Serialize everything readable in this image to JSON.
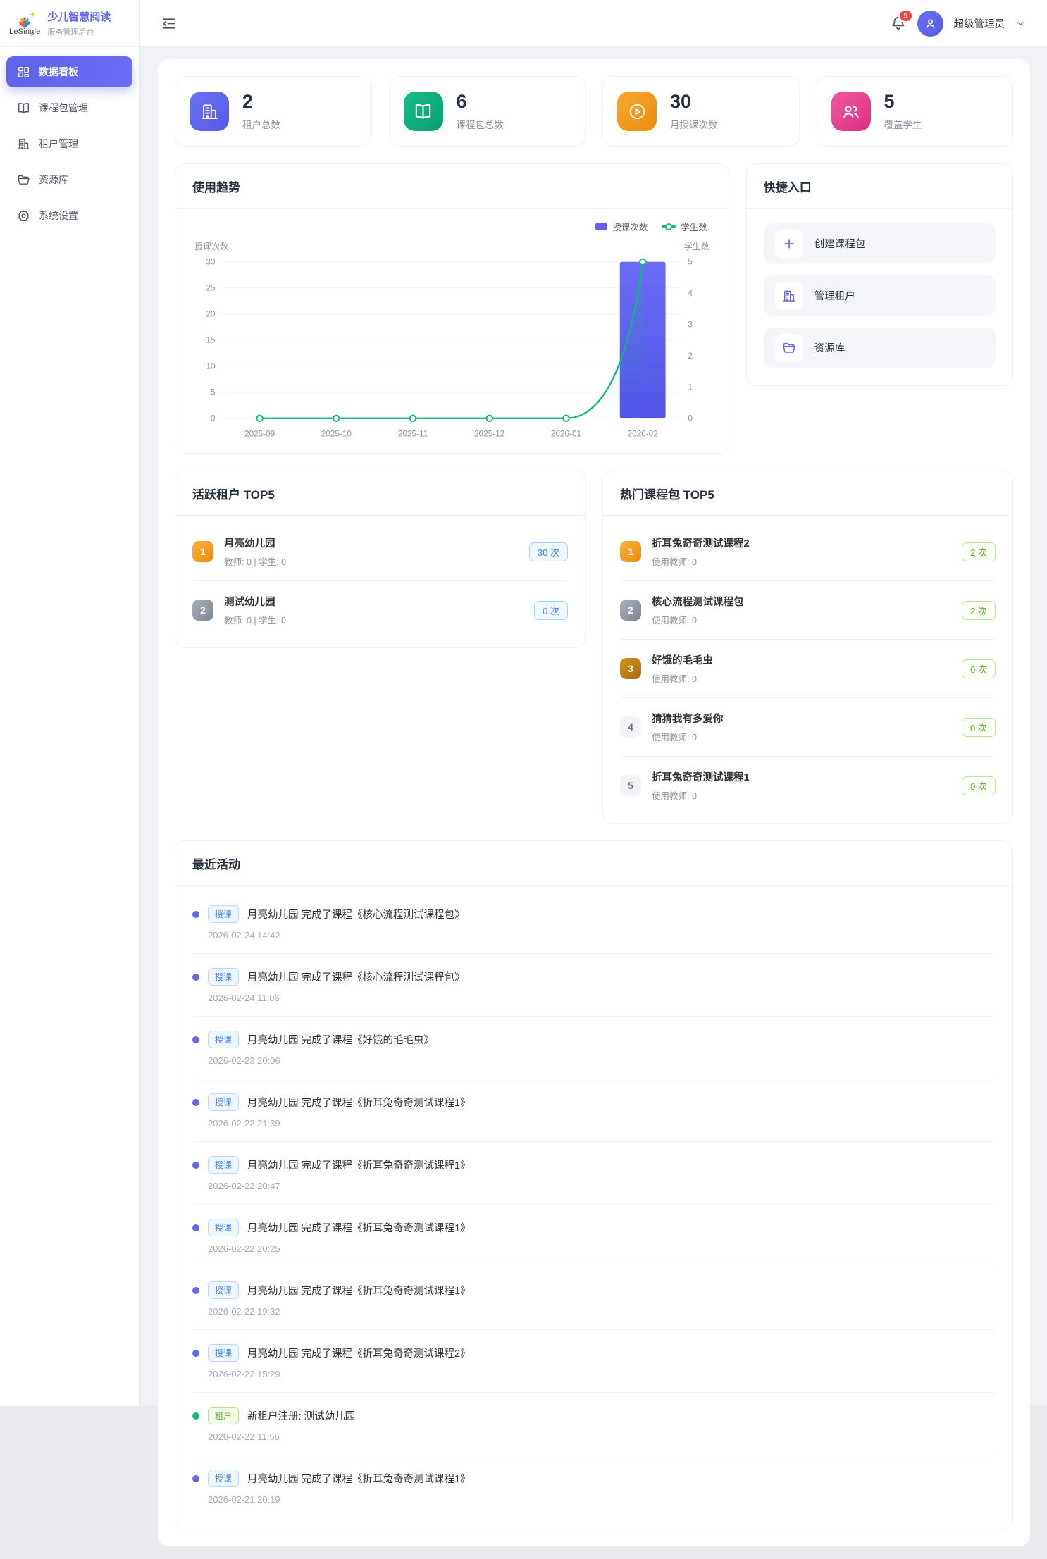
{
  "brand": {
    "logo_text": "LeSingle",
    "title": "少儿智慧阅读",
    "subtitle": "服务管理后台"
  },
  "header": {
    "notification_count": "5",
    "user_name": "超级管理员"
  },
  "sidebar": {
    "items": [
      {
        "label": "数据看板",
        "icon": "#i-dashboard",
        "state": "active"
      },
      {
        "label": "课程包管理",
        "icon": "#i-book",
        "state": ""
      },
      {
        "label": "租户管理",
        "icon": "#i-building",
        "state": ""
      },
      {
        "label": "资源库",
        "icon": "#i-folder",
        "state": ""
      },
      {
        "label": "系统设置",
        "icon": "#i-gear",
        "state": ""
      }
    ]
  },
  "stats": [
    {
      "value": "2",
      "label": "租户总数",
      "icon": "#i-building",
      "theme": "theme-purple"
    },
    {
      "value": "6",
      "label": "课程包总数",
      "icon": "#i-book",
      "theme": "theme-green"
    },
    {
      "value": "30",
      "label": "月授课次数",
      "icon": "#i-play",
      "theme": "theme-orange"
    },
    {
      "value": "5",
      "label": "覆盖学生",
      "icon": "#i-people",
      "theme": "theme-pink"
    }
  ],
  "usage_trend": {
    "title": "使用趋势"
  },
  "chart_data": {
    "type": "bar-line-dual-axis",
    "title": "使用趋势",
    "categories": [
      "2025-09",
      "2025-10",
      "2025-11",
      "2025-12",
      "2026-01",
      "2026-02"
    ],
    "series": [
      {
        "name": "授课次数",
        "type": "bar",
        "axis": "left",
        "color": "#5e61ee",
        "values": [
          0,
          0,
          0,
          0,
          0,
          30
        ]
      },
      {
        "name": "学生数",
        "type": "line",
        "axis": "right",
        "color": "#10b981",
        "values": [
          0,
          0,
          0,
          0,
          0,
          5
        ]
      }
    ],
    "left_axis": {
      "label": "授课次数",
      "min": 0,
      "max": 30,
      "ticks": [
        0,
        5,
        10,
        15,
        20,
        25,
        30
      ]
    },
    "right_axis": {
      "label": "学生数",
      "min": 0,
      "max": 5,
      "ticks": [
        0,
        1,
        2,
        3,
        4,
        5
      ]
    },
    "grid": true,
    "legend_position": "top-right"
  },
  "quick_entry": {
    "title": "快捷入口",
    "items": [
      {
        "label": "创建课程包",
        "icon": "#i-plus"
      },
      {
        "label": "管理租户",
        "icon": "#i-building"
      },
      {
        "label": "资源库",
        "icon": "#i-folder"
      }
    ]
  },
  "active_tenants": {
    "title": "活跃租户 TOP5",
    "items": [
      {
        "rank": "1",
        "rank_class": "rank-1",
        "name": "月亮幼儿园",
        "meta": "教师: 0 | 学生: 0",
        "count": "30 次"
      },
      {
        "rank": "2",
        "rank_class": "rank-2",
        "name": "测试幼儿园",
        "meta": "教师: 0 | 学生: 0",
        "count": "0 次"
      }
    ]
  },
  "hot_packages": {
    "title": "热门课程包 TOP5",
    "items": [
      {
        "rank": "1",
        "rank_class": "rank-1",
        "name": "折耳兔奇奇测试课程2",
        "meta": "使用教师: 0",
        "count": "2 次"
      },
      {
        "rank": "2",
        "rank_class": "rank-2",
        "name": "核心流程测试课程包",
        "meta": "使用教师: 0",
        "count": "2 次"
      },
      {
        "rank": "3",
        "rank_class": "rank-3",
        "name": "好饿的毛毛虫",
        "meta": "使用教师: 0",
        "count": "0 次"
      },
      {
        "rank": "4",
        "rank_class": "rank-other",
        "name": "猜猜我有多爱你",
        "meta": "使用教师: 0",
        "count": "0 次"
      },
      {
        "rank": "5",
        "rank_class": "rank-other",
        "name": "折耳兔奇奇测试课程1",
        "meta": "使用教师: 0",
        "count": "0 次"
      }
    ]
  },
  "recent_activity": {
    "title": "最近活动",
    "items": [
      {
        "type": "teach",
        "badge": "授课",
        "text": "月亮幼儿园 完成了课程《核心流程测试课程包》",
        "time": "2026-02-24 14:42"
      },
      {
        "type": "teach",
        "badge": "授课",
        "text": "月亮幼儿园 完成了课程《核心流程测试课程包》",
        "time": "2026-02-24 11:06"
      },
      {
        "type": "teach",
        "badge": "授课",
        "text": "月亮幼儿园 完成了课程《好饿的毛毛虫》",
        "time": "2026-02-23 20:06"
      },
      {
        "type": "teach",
        "badge": "授课",
        "text": "月亮幼儿园 完成了课程《折耳兔奇奇测试课程1》",
        "time": "2026-02-22 21:39"
      },
      {
        "type": "teach",
        "badge": "授课",
        "text": "月亮幼儿园 完成了课程《折耳兔奇奇测试课程1》",
        "time": "2026-02-22 20:47"
      },
      {
        "type": "teach",
        "badge": "授课",
        "text": "月亮幼儿园 完成了课程《折耳兔奇奇测试课程1》",
        "time": "2026-02-22 20:25"
      },
      {
        "type": "teach",
        "badge": "授课",
        "text": "月亮幼儿园 完成了课程《折耳兔奇奇测试课程1》",
        "time": "2026-02-22 19:32"
      },
      {
        "type": "teach",
        "badge": "授课",
        "text": "月亮幼儿园 完成了课程《折耳兔奇奇测试课程2》",
        "time": "2026-02-22 15:29"
      },
      {
        "type": "tenant",
        "badge": "租户",
        "text": "新租户注册: 测试幼儿园",
        "time": "2026-02-22 11:56"
      },
      {
        "type": "teach",
        "badge": "授课",
        "text": "月亮幼儿园 完成了课程《折耳兔奇奇测试课程1》",
        "time": "2026-02-21 20:19"
      }
    ]
  },
  "colors": {
    "accent": "#6366f1",
    "bar": "#5e61ee",
    "line": "#10b981",
    "orange": "#f59e0b",
    "pink": "#ec4899",
    "badge_red": "#ef4444"
  }
}
